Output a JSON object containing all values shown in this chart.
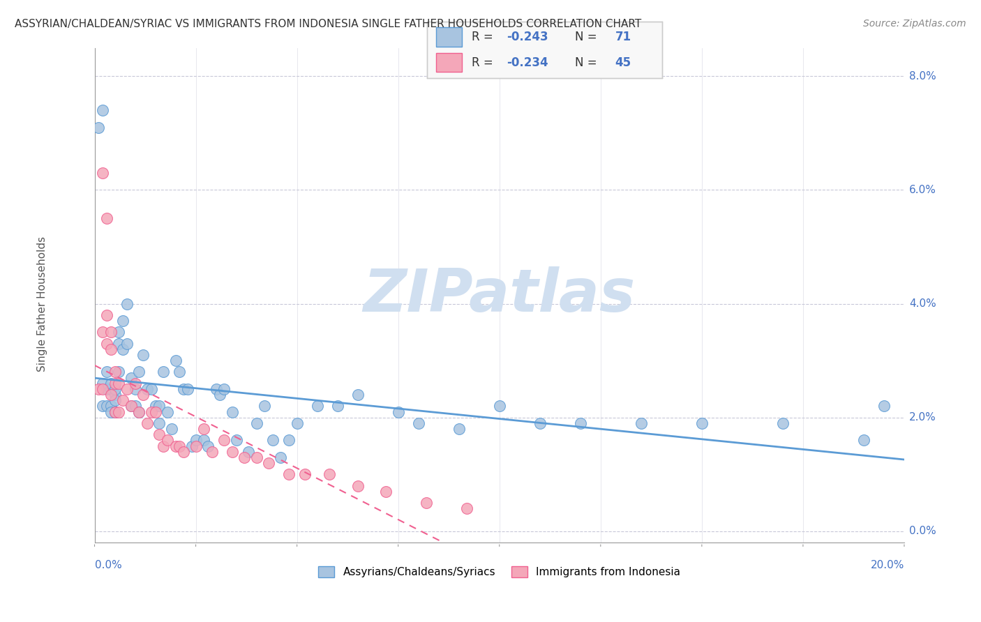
{
  "title": "ASSYRIAN/CHALDEAN/SYRIAC VS IMMIGRANTS FROM INDONESIA SINGLE FATHER HOUSEHOLDS CORRELATION CHART",
  "source": "Source: ZipAtlas.com",
  "ylabel": "Single Father Households",
  "legend_label1": "Assyrians/Chaldeans/Syriacs",
  "legend_label2": "Immigrants from Indonesia",
  "legend_r1": "-0.243",
  "legend_n1": "71",
  "legend_r2": "-0.234",
  "legend_n2": "45",
  "color_blue": "#a8c4e0",
  "color_pink": "#f4a7b9",
  "trendline_blue": "#5b9bd5",
  "trendline_pink": "#f06090",
  "watermark_color": "#d0dff0",
  "watermark_text": "ZIPatlas",
  "xmin": 0.0,
  "xmax": 0.2,
  "ymin": -0.002,
  "ymax": 0.085,
  "blue_x": [
    0.001,
    0.002,
    0.002,
    0.003,
    0.003,
    0.003,
    0.004,
    0.004,
    0.004,
    0.004,
    0.005,
    0.005,
    0.005,
    0.005,
    0.006,
    0.006,
    0.006,
    0.007,
    0.007,
    0.008,
    0.008,
    0.009,
    0.009,
    0.01,
    0.01,
    0.011,
    0.011,
    0.012,
    0.013,
    0.014,
    0.015,
    0.016,
    0.016,
    0.017,
    0.018,
    0.019,
    0.02,
    0.021,
    0.022,
    0.023,
    0.024,
    0.025,
    0.027,
    0.028,
    0.03,
    0.031,
    0.032,
    0.034,
    0.035,
    0.038,
    0.04,
    0.042,
    0.044,
    0.046,
    0.048,
    0.05,
    0.055,
    0.06,
    0.065,
    0.075,
    0.08,
    0.09,
    0.1,
    0.11,
    0.12,
    0.135,
    0.15,
    0.17,
    0.19,
    0.195,
    0.002
  ],
  "blue_y": [
    0.071,
    0.026,
    0.022,
    0.025,
    0.028,
    0.022,
    0.025,
    0.026,
    0.022,
    0.021,
    0.024,
    0.023,
    0.025,
    0.021,
    0.035,
    0.033,
    0.028,
    0.037,
    0.032,
    0.04,
    0.033,
    0.027,
    0.022,
    0.025,
    0.022,
    0.028,
    0.021,
    0.031,
    0.025,
    0.025,
    0.022,
    0.022,
    0.019,
    0.028,
    0.021,
    0.018,
    0.03,
    0.028,
    0.025,
    0.025,
    0.015,
    0.016,
    0.016,
    0.015,
    0.025,
    0.024,
    0.025,
    0.021,
    0.016,
    0.014,
    0.019,
    0.022,
    0.016,
    0.013,
    0.016,
    0.019,
    0.022,
    0.022,
    0.024,
    0.021,
    0.019,
    0.018,
    0.022,
    0.019,
    0.019,
    0.019,
    0.019,
    0.019,
    0.016,
    0.022,
    0.074
  ],
  "pink_x": [
    0.001,
    0.002,
    0.002,
    0.003,
    0.003,
    0.003,
    0.004,
    0.004,
    0.004,
    0.005,
    0.005,
    0.005,
    0.006,
    0.006,
    0.007,
    0.008,
    0.009,
    0.01,
    0.011,
    0.012,
    0.013,
    0.014,
    0.015,
    0.016,
    0.017,
    0.018,
    0.02,
    0.021,
    0.022,
    0.025,
    0.027,
    0.029,
    0.032,
    0.034,
    0.037,
    0.04,
    0.043,
    0.048,
    0.052,
    0.058,
    0.065,
    0.072,
    0.082,
    0.092,
    0.002
  ],
  "pink_y": [
    0.025,
    0.035,
    0.025,
    0.055,
    0.038,
    0.033,
    0.035,
    0.032,
    0.024,
    0.028,
    0.026,
    0.021,
    0.026,
    0.021,
    0.023,
    0.025,
    0.022,
    0.026,
    0.021,
    0.024,
    0.019,
    0.021,
    0.021,
    0.017,
    0.015,
    0.016,
    0.015,
    0.015,
    0.014,
    0.015,
    0.018,
    0.014,
    0.016,
    0.014,
    0.013,
    0.013,
    0.012,
    0.01,
    0.01,
    0.01,
    0.008,
    0.007,
    0.005,
    0.004,
    0.063
  ],
  "ytick_vals": [
    0.0,
    0.02,
    0.04,
    0.06,
    0.08
  ],
  "ytick_labels": [
    "0.0%",
    "2.0%",
    "4.0%",
    "6.0%",
    "8.0%"
  ]
}
